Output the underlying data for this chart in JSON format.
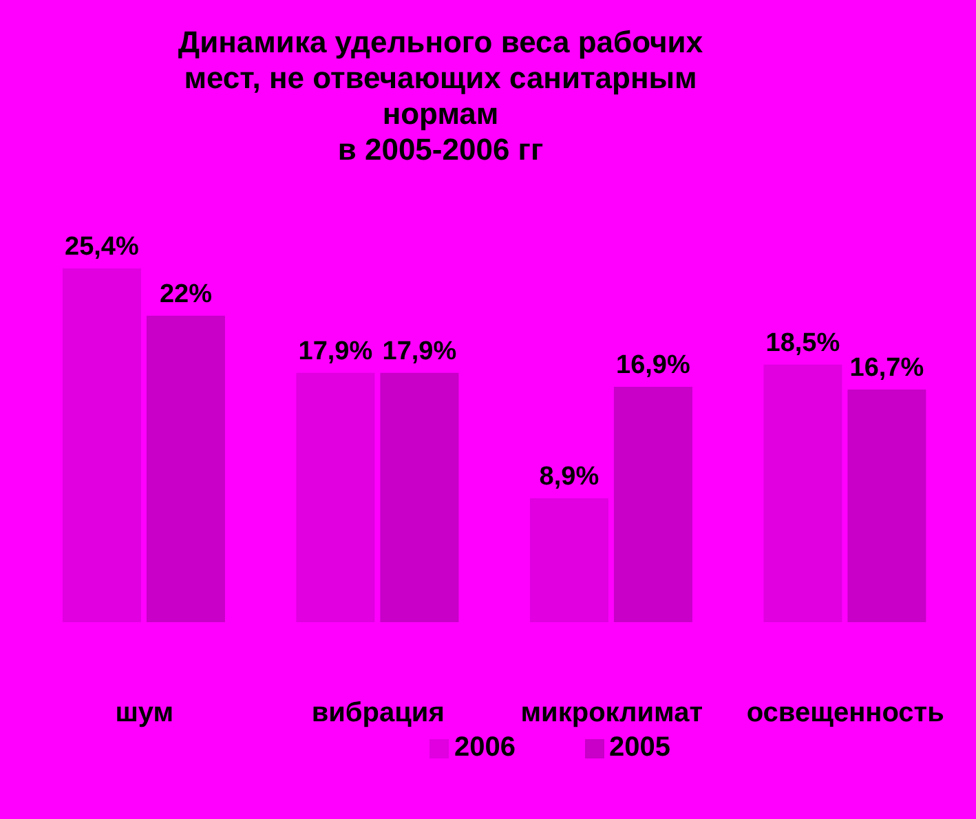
{
  "chart_data": {
    "type": "bar",
    "title": "Динамика удельного веса рабочих\nмест, не отвечающих санитарным\nнормам\nв 2005-2006 гг",
    "categories": [
      "шум",
      "вибрация",
      "микроклимат",
      "освещенность"
    ],
    "series": [
      {
        "name": "2006",
        "color": "#e000e0",
        "values": [
          25.4,
          17.9,
          8.9,
          18.5
        ],
        "value_labels": [
          "25,4%",
          "17,9%",
          "8,9%",
          "18,5%"
        ]
      },
      {
        "name": "2005",
        "color": "#c800c8",
        "values": [
          22,
          17.9,
          16.9,
          16.7
        ],
        "value_labels": [
          "22%",
          "17,9%",
          "16,9%",
          "16,7%"
        ]
      }
    ],
    "legend": "bottom"
  }
}
